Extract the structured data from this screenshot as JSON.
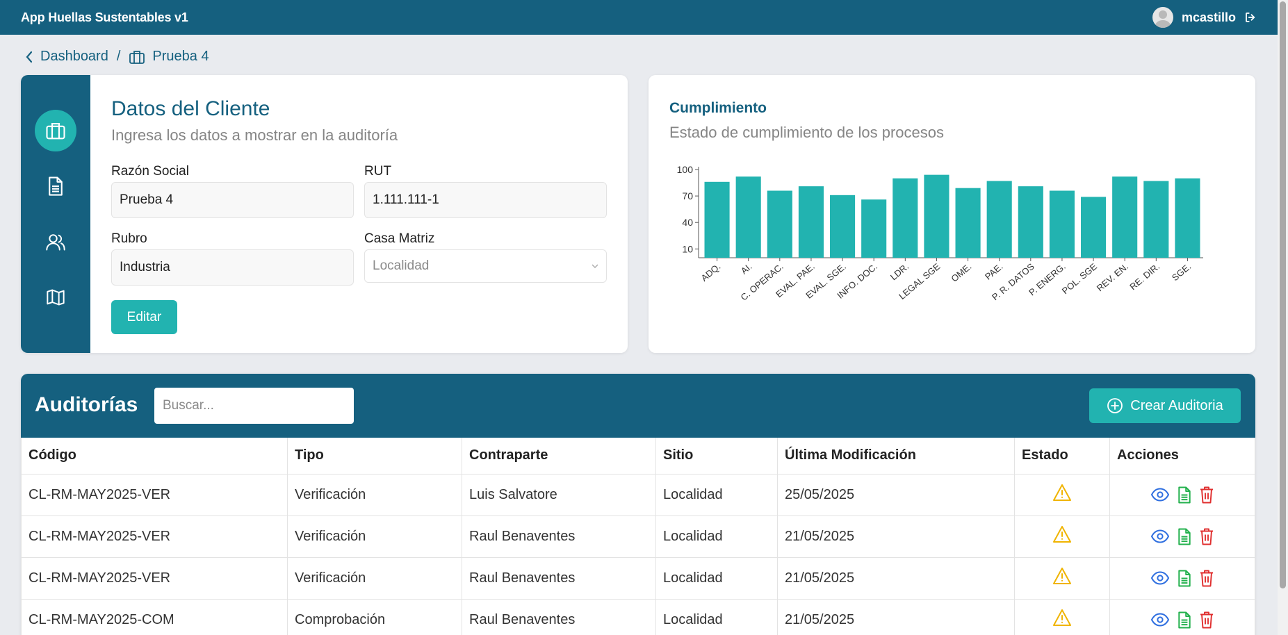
{
  "header": {
    "app_title": "App Huellas Sustentables v1",
    "username": "mcastillo"
  },
  "breadcrumb": {
    "back": "Dashboard",
    "separator": "/",
    "current": "Prueba 4"
  },
  "client": {
    "title": "Datos del Cliente",
    "subtitle": "Ingresa los datos a mostrar en la auditoría",
    "razon_label": "Razón Social",
    "razon_value": "Prueba 4",
    "rut_label": "RUT",
    "rut_value": "1.111.111-1",
    "rubro_label": "Rubro",
    "rubro_value": "Industria",
    "casa_label": "Casa Matriz",
    "casa_value": "Localidad",
    "edit_label": "Editar"
  },
  "sidebar": {
    "items": [
      "briefcase-icon",
      "document-icon",
      "users-icon",
      "map-icon"
    ]
  },
  "chart": {
    "title": "Cumplimiento",
    "subtitle": "Estado de cumplimiento de los procesos"
  },
  "chart_data": {
    "type": "bar",
    "color": "#22b3b0",
    "categories": [
      "ADQ.",
      "AI.",
      "C. OPERAC.",
      "EVAL. PAE.",
      "EVAL. SGE.",
      "INFO. DOC.",
      "LDR.",
      "LEGAL SGE",
      "OME.",
      "PAE.",
      "P. R. DATOS",
      "P. ENERG.",
      "POL. SGE",
      "REV. EN.",
      "RE. DIR.",
      "SGE."
    ],
    "values": [
      86,
      92,
      76,
      81,
      71,
      66,
      90,
      94,
      79,
      87,
      81,
      76,
      69,
      92,
      87,
      90
    ],
    "yticks": [
      10,
      40,
      70,
      100
    ],
    "ylim": [
      0,
      100
    ]
  },
  "audits": {
    "title": "Auditorías",
    "search_placeholder": "Buscar...",
    "create_label": "Crear Auditoria",
    "columns": [
      "Código",
      "Tipo",
      "Contraparte",
      "Sitio",
      "Última Modificación",
      "Estado",
      "Acciones"
    ],
    "rows": [
      {
        "codigo": "CL-RM-MAY2025-VER",
        "tipo": "Verificación",
        "contraparte": "Luis Salvatore",
        "sitio": "Localidad",
        "fecha": "25/05/2025"
      },
      {
        "codigo": "CL-RM-MAY2025-VER",
        "tipo": "Verificación",
        "contraparte": "Raul Benaventes",
        "sitio": "Localidad",
        "fecha": "21/05/2025"
      },
      {
        "codigo": "CL-RM-MAY2025-VER",
        "tipo": "Verificación",
        "contraparte": "Raul Benaventes",
        "sitio": "Localidad",
        "fecha": "21/05/2025"
      },
      {
        "codigo": "CL-RM-MAY2025-COM",
        "tipo": "Comprobación",
        "contraparte": "Raul Benaventes",
        "sitio": "Localidad",
        "fecha": "21/05/2025"
      }
    ]
  },
  "colors": {
    "primary": "#15607f",
    "accent": "#22b3b0",
    "warning": "#f0b400",
    "view": "#2f6fe0",
    "doc": "#23b14d",
    "delete": "#e02f2f"
  }
}
